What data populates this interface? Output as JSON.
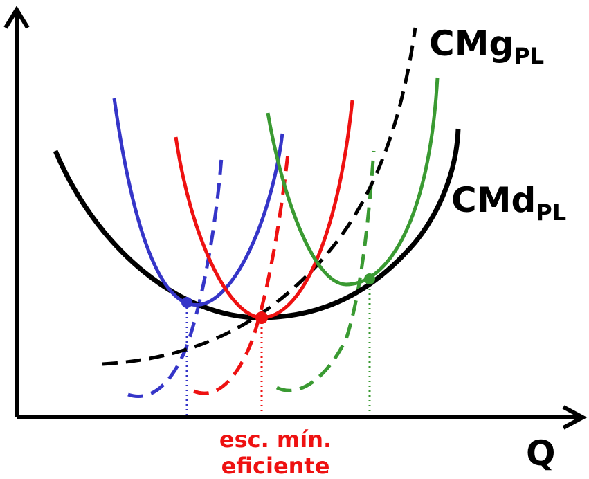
{
  "labels": {
    "marginal_cost": {
      "main": "CMg",
      "sub": "PL"
    },
    "average_cost": {
      "main": "CMd",
      "sub": "PL"
    },
    "x_axis": "Q",
    "mes_line1": "esc. mín.",
    "mes_line2": "eficiente"
  },
  "colors": {
    "long_run": "#000000",
    "plant_small": "#3535c8",
    "plant_mid": "#ee1111",
    "plant_large": "#3a9a32",
    "mes_label": "#ee1111"
  }
}
